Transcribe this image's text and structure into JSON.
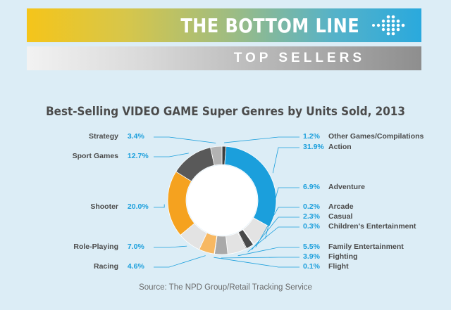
{
  "banner": {
    "title": "THE BOTTOM LINE",
    "subtitle": "TOP SELLERS"
  },
  "colors": {
    "blue": "#1b9fdc",
    "orange": "#f5a21f",
    "dark_gray": "#595959",
    "light_gray": "#e3e3e3",
    "mid_gray": "#b3b3b3",
    "label_text": "#4b4b4b"
  },
  "chart_data": {
    "type": "donut",
    "title": "Best-Selling VIDEO GAME Super Genres by Units Sold, 2013",
    "source": "Source: The NPD Group/Retail Tracking Service",
    "slices": [
      {
        "name": "Other Games/Compilations",
        "label": "1.2%",
        "value": 1.2,
        "color": "#3d3d3d"
      },
      {
        "name": "Action",
        "label": "31.9%",
        "value": 31.9,
        "color": "#1b9fdc"
      },
      {
        "name": "Adventure",
        "label": "6.9%",
        "value": 6.9,
        "color": "#e3e3e3"
      },
      {
        "name": "Arcade",
        "label": "0.2%",
        "value": 0.2,
        "color": "#6fc7ef"
      },
      {
        "name": "Casual",
        "label": "2.3%",
        "value": 2.3,
        "color": "#4a4a4a"
      },
      {
        "name": "Children's Entertainment",
        "label": "0.3%",
        "value": 0.3,
        "color": "#8a8a8a"
      },
      {
        "name": "Family Entertainment",
        "label": "5.5%",
        "value": 5.5,
        "color": "#e3e3e3"
      },
      {
        "name": "Fighting",
        "label": "3.9%",
        "value": 3.9,
        "color": "#a9a9a9"
      },
      {
        "name": "Flight",
        "label": "0.1%",
        "value": 0.1,
        "color": "#1b9fdc"
      },
      {
        "name": "Racing",
        "label": "4.6%",
        "value": 4.6,
        "color": "#f7b862"
      },
      {
        "name": "Role-Playing",
        "label": "7.0%",
        "value": 7.0,
        "color": "#e3e3e3"
      },
      {
        "name": "Shooter",
        "label": "20.0%",
        "value": 20.0,
        "color": "#f5a21f"
      },
      {
        "name": "Sport Games",
        "label": "12.7%",
        "value": 12.7,
        "color": "#595959"
      },
      {
        "name": "Strategy",
        "label": "3.4%",
        "value": 3.4,
        "color": "#b3b3b3"
      }
    ]
  }
}
